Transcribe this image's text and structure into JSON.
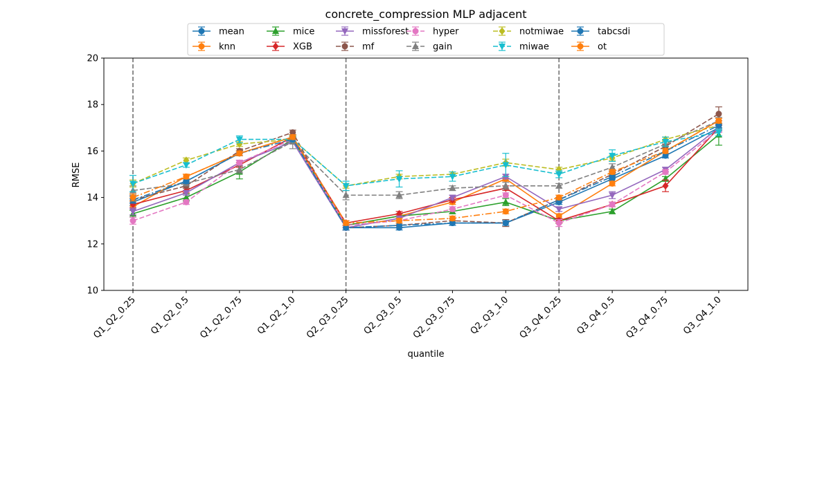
{
  "chart_data": {
    "type": "line",
    "title": "concrete_compression MLP adjacent",
    "xlabel": "quantile",
    "ylabel": "RMSE",
    "ylim": [
      10,
      20
    ],
    "yticks": [
      10,
      12,
      14,
      16,
      18,
      20
    ],
    "grid": false,
    "legend_position": "top-center",
    "categories": [
      "Q1_Q2_0.25",
      "Q1_Q2_0.5",
      "Q1_Q2_0.75",
      "Q1_Q2_1.0",
      "Q2_Q3_0.25",
      "Q2_Q3_0.5",
      "Q2_Q3_0.75",
      "Q2_Q3_1.0",
      "Q3_Q4_0.25",
      "Q3_Q4_0.5",
      "Q3_Q4_0.75",
      "Q3_Q4_1.0"
    ],
    "vlines_at": [
      "Q1_Q2_0.25",
      "Q2_Q3_0.25",
      "Q3_Q4_0.25"
    ],
    "series": [
      {
        "name": "mean",
        "color": "#1f77b4",
        "dash": "solid",
        "marker": "circle",
        "values": [
          13.8,
          14.7,
          15.9,
          16.6,
          12.7,
          12.7,
          12.9,
          12.9,
          13.8,
          14.8,
          15.8,
          17.0
        ],
        "errors": [
          0.15,
          0.1,
          0.1,
          0.1,
          0.1,
          0.1,
          0.1,
          0.1,
          0.1,
          0.1,
          0.1,
          0.1
        ]
      },
      {
        "name": "knn",
        "color": "#ff7f0e",
        "dash": "solid",
        "marker": "circle",
        "values": [
          13.6,
          14.9,
          15.9,
          16.6,
          12.8,
          13.2,
          13.8,
          14.8,
          13.2,
          14.6,
          16.0,
          17.3
        ],
        "errors": [
          0.15,
          0.1,
          0.1,
          0.1,
          0.1,
          0.1,
          0.1,
          0.1,
          0.1,
          0.1,
          0.1,
          0.1
        ]
      },
      {
        "name": "mice",
        "color": "#2ca02c",
        "dash": "solid",
        "marker": "triangle",
        "values": [
          13.3,
          14.0,
          15.1,
          16.5,
          12.8,
          13.2,
          13.4,
          13.8,
          13.0,
          13.4,
          14.8,
          16.7
        ],
        "errors": [
          0.15,
          0.15,
          0.3,
          0.15,
          0.1,
          0.1,
          0.1,
          0.15,
          0.1,
          0.1,
          0.1,
          0.45
        ]
      },
      {
        "name": "XGB",
        "color": "#d62728",
        "dash": "solid",
        "marker": "diamond",
        "values": [
          13.7,
          14.3,
          15.4,
          16.6,
          12.9,
          13.3,
          13.9,
          14.4,
          13.0,
          13.7,
          14.5,
          17.0
        ],
        "errors": [
          0.15,
          0.1,
          0.1,
          0.1,
          0.1,
          0.1,
          0.1,
          0.1,
          0.1,
          0.1,
          0.25,
          0.1
        ]
      },
      {
        "name": "missforest",
        "color": "#9467bd",
        "dash": "solid",
        "marker": "triangle-down",
        "values": [
          13.4,
          14.2,
          15.5,
          16.4,
          12.7,
          13.1,
          14.0,
          14.9,
          13.5,
          14.1,
          15.2,
          17.0
        ],
        "errors": [
          0.15,
          0.1,
          0.1,
          0.1,
          0.1,
          0.1,
          0.1,
          0.1,
          0.1,
          0.15,
          0.1,
          0.15
        ]
      },
      {
        "name": "mf",
        "color": "#8c564b",
        "dash": "dashed",
        "marker": "circle",
        "values": [
          13.9,
          14.5,
          16.0,
          16.8,
          12.7,
          12.8,
          13.0,
          12.9,
          13.9,
          15.0,
          16.2,
          17.6
        ],
        "errors": [
          0.15,
          0.1,
          0.1,
          0.1,
          0.1,
          0.1,
          0.1,
          0.15,
          0.1,
          0.1,
          0.1,
          0.3
        ]
      },
      {
        "name": "hyper",
        "color": "#e377c2",
        "dash": "dashed",
        "marker": "circle",
        "values": [
          13.0,
          13.8,
          15.5,
          16.5,
          12.8,
          13.0,
          13.5,
          14.1,
          12.9,
          13.7,
          15.1,
          16.9
        ],
        "errors": [
          0.15,
          0.1,
          0.1,
          0.1,
          0.1,
          0.1,
          0.1,
          0.1,
          0.15,
          0.1,
          0.1,
          0.1
        ]
      },
      {
        "name": "gain",
        "color": "#7f7f7f",
        "dash": "dashed",
        "marker": "triangle",
        "values": [
          14.3,
          14.6,
          15.2,
          16.4,
          14.1,
          14.1,
          14.4,
          14.5,
          14.5,
          15.3,
          16.3,
          17.3
        ],
        "errors": [
          0.2,
          0.1,
          0.15,
          0.3,
          0.2,
          0.15,
          0.1,
          0.15,
          0.1,
          0.15,
          0.2,
          0.15
        ]
      },
      {
        "name": "notmiwae",
        "color": "#bcbd22",
        "dash": "dashed",
        "marker": "diamond",
        "values": [
          14.6,
          15.6,
          16.3,
          16.5,
          14.5,
          14.9,
          15.0,
          15.5,
          15.2,
          15.7,
          16.5,
          17.1
        ],
        "errors": [
          0.15,
          0.1,
          0.1,
          0.1,
          0.1,
          0.1,
          0.1,
          0.15,
          0.1,
          0.1,
          0.1,
          0.1
        ]
      },
      {
        "name": "miwae",
        "color": "#17becf",
        "dash": "dashed",
        "marker": "triangle-down",
        "values": [
          14.6,
          15.4,
          16.5,
          16.5,
          14.5,
          14.8,
          14.9,
          15.4,
          15.0,
          15.8,
          16.4,
          16.8
        ],
        "errors": [
          0.35,
          0.1,
          0.15,
          0.1,
          0.2,
          0.35,
          0.2,
          0.5,
          0.15,
          0.25,
          0.2,
          0.15
        ]
      },
      {
        "name": "tabcsdi",
        "color": "#1f77b4",
        "dash": "dashdot",
        "marker": "circle",
        "values": [
          13.9,
          14.7,
          15.9,
          16.5,
          12.7,
          12.8,
          12.9,
          12.9,
          13.9,
          14.9,
          16.0,
          17.1
        ],
        "errors": [
          0.15,
          0.1,
          0.1,
          0.1,
          0.1,
          0.1,
          0.1,
          0.1,
          0.1,
          0.1,
          0.1,
          0.1
        ]
      },
      {
        "name": "ot",
        "color": "#ff7f0e",
        "dash": "dashdot",
        "marker": "circle",
        "values": [
          14.0,
          14.9,
          15.9,
          16.6,
          12.9,
          13.0,
          13.1,
          13.4,
          14.0,
          15.1,
          16.0,
          17.3
        ],
        "errors": [
          0.15,
          0.1,
          0.1,
          0.1,
          0.1,
          0.1,
          0.1,
          0.1,
          0.1,
          0.1,
          0.1,
          0.1
        ]
      }
    ]
  }
}
